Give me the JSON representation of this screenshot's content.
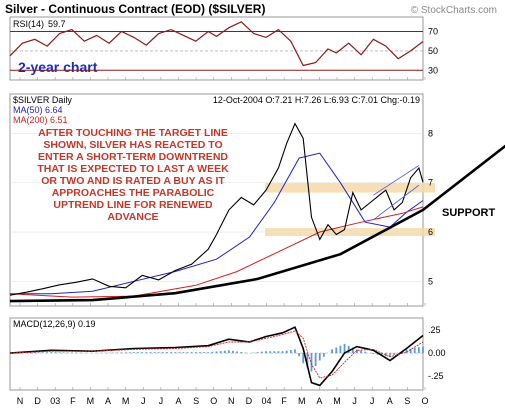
{
  "chart_data": [
    {
      "type": "line",
      "title": "Silver - Continuous Contract (EOD) ($SILVER)",
      "watermark": "© StockCharts.com",
      "panel": "RSI",
      "label": "RSI(14)",
      "last_value": "59.7",
      "y_ticks": [
        "70",
        "50",
        "30"
      ],
      "ylim": [
        20,
        85
      ],
      "reference_lines": [
        70,
        30
      ],
      "note": "2-year chart",
      "x_index": [
        0,
        6,
        12,
        18,
        24,
        30,
        36,
        42,
        48,
        54,
        60,
        66,
        72,
        78,
        84,
        90,
        96,
        100,
        106,
        112,
        118,
        124,
        130,
        136,
        142,
        148,
        154,
        158,
        164,
        170,
        176,
        182,
        188,
        194,
        200
      ],
      "values": [
        45,
        58,
        62,
        55,
        68,
        72,
        60,
        66,
        58,
        70,
        64,
        56,
        68,
        72,
        66,
        60,
        70,
        65,
        74,
        80,
        68,
        64,
        72,
        60,
        35,
        38,
        52,
        48,
        58,
        46,
        62,
        55,
        42,
        50,
        59.7
      ]
    },
    {
      "type": "line",
      "panel": "price",
      "header_left": "$SILVER Daily",
      "header_right": "12-Oct-2004  O:7.21  H:7.26  L:6.93  C:7.01  Chg:-0.19",
      "series": [
        {
          "name": "MA(50) 6.64",
          "color": "#2222cc",
          "x_index": [
            0,
            20,
            40,
            60,
            80,
            100,
            116,
            128,
            140,
            150,
            160,
            172,
            184,
            192,
            200
          ],
          "values": [
            4.75,
            4.75,
            4.8,
            5.0,
            5.2,
            5.45,
            5.9,
            6.6,
            7.5,
            7.6,
            7.0,
            6.2,
            6.1,
            6.4,
            6.64
          ]
        },
        {
          "name": "MA(200) 6.51",
          "color": "#cc2222",
          "x_index": [
            0,
            30,
            60,
            90,
            110,
            130,
            150,
            170,
            190,
            200
          ],
          "values": [
            4.75,
            4.68,
            4.7,
            4.92,
            5.2,
            5.6,
            6.0,
            6.2,
            6.38,
            6.51
          ]
        },
        {
          "name": "Price",
          "color": "#000000",
          "x_index": [
            0,
            8,
            16,
            24,
            32,
            40,
            48,
            56,
            64,
            72,
            80,
            88,
            96,
            100,
            106,
            112,
            118,
            124,
            130,
            134,
            138,
            142,
            146,
            150,
            154,
            158,
            162,
            166,
            170,
            176,
            182,
            186,
            190,
            194,
            198,
            200
          ],
          "values": [
            4.72,
            4.78,
            4.85,
            4.93,
            4.98,
            5.05,
            4.9,
            4.87,
            5.12,
            5.03,
            5.22,
            5.35,
            5.65,
            5.95,
            6.45,
            6.7,
            6.55,
            6.85,
            7.3,
            7.8,
            8.2,
            7.9,
            6.3,
            5.85,
            6.15,
            5.95,
            6.05,
            6.8,
            6.45,
            6.65,
            6.85,
            6.45,
            6.6,
            7.1,
            7.3,
            7.01
          ]
        }
      ],
      "y_ticks": [
        "8",
        "7",
        "6",
        "5"
      ],
      "ylim": [
        4.5,
        8.8
      ],
      "support_bands": [
        {
          "from": 6.8,
          "to": 7.0
        },
        {
          "from": 5.92,
          "to": 6.08
        }
      ],
      "parabolic_trendline": {
        "x_index": [
          0,
          40,
          80,
          120,
          160,
          200,
          240
        ],
        "values": [
          4.6,
          4.62,
          4.76,
          5.05,
          5.55,
          6.45,
          7.75
        ]
      },
      "annotation": "AFTER TOUCHING THE TARGET LINE SHOWN, SILVER HAS REACTED TO ENTER A SHORT-TERM DOWNTREND THAT IS EXPECTED TO LAST A WEEK OR TWO AND IS RATED A BUY AS IT APPROACHES THE PARABOLIC UPTREND LINE FOR RENEWED ADVANCE",
      "annotation_lines": [
        "AFTER TOUCHING THE TARGET LINE",
        "SHOWN, SILVER HAS REACTED TO",
        "ENTER A SHORT-TERM DOWNTREND",
        "THAT IS EXPECTED TO LAST A WEEK",
        "OR TWO AND IS RATED A BUY AS IT",
        "APPROACHES THE PARABOLIC",
        "UPTREND LINE FOR RENEWED",
        "ADVANCE"
      ],
      "support_label": "SUPPORT"
    },
    {
      "type": "line",
      "panel": "MACD",
      "label": "MACD(12,26,9)  0.19",
      "y_ticks": [
        ".25",
        "0.00",
        "-.25"
      ],
      "ylim": [
        -0.4,
        0.38
      ],
      "macd": {
        "x_index": [
          0,
          20,
          40,
          60,
          80,
          96,
          106,
          116,
          124,
          132,
          138,
          142,
          146,
          150,
          156,
          162,
          168,
          176,
          184,
          192,
          200
        ],
        "values": [
          0.0,
          0.03,
          0.02,
          0.05,
          0.06,
          0.08,
          0.15,
          0.12,
          0.18,
          0.22,
          0.28,
          0.05,
          -0.32,
          -0.35,
          -0.2,
          0.0,
          0.07,
          0.03,
          -0.08,
          0.05,
          0.19
        ]
      },
      "signal": {
        "x_index": [
          0,
          20,
          40,
          60,
          80,
          96,
          106,
          116,
          124,
          132,
          138,
          142,
          146,
          150,
          156,
          162,
          168,
          176,
          184,
          192,
          200
        ],
        "values": [
          0.0,
          0.02,
          0.02,
          0.04,
          0.05,
          0.07,
          0.12,
          0.12,
          0.16,
          0.2,
          0.24,
          0.16,
          -0.12,
          -0.27,
          -0.24,
          -0.1,
          0.03,
          0.04,
          -0.04,
          0.01,
          0.12
        ]
      }
    }
  ],
  "x_axis": {
    "labels": [
      "N",
      "D",
      "03",
      "F",
      "M",
      "A",
      "M",
      "J",
      "J",
      "A",
      "S",
      "O",
      "N",
      "D",
      "04",
      "F",
      "M",
      "A",
      "M",
      "J",
      "J",
      "A",
      "S",
      "O"
    ]
  }
}
